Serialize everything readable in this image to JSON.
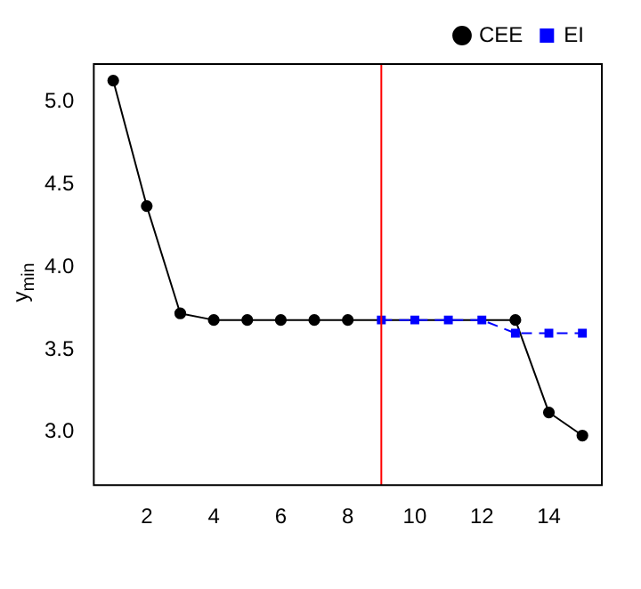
{
  "chart_data": {
    "type": "line",
    "ylabel": "y$_{min}$",
    "xlim": [
      0.42,
      15.58
    ],
    "xticks": [
      2,
      4,
      6,
      8,
      10,
      12,
      14
    ],
    "ylim": [
      2.68,
      5.23
    ],
    "yticks": [
      {
        "value": 3,
        "label": "3.0"
      },
      {
        "value": 3.5,
        "label": "3.5"
      },
      {
        "value": 4,
        "label": "4.0"
      },
      {
        "value": 4.5,
        "label": "4.5"
      },
      {
        "value": 5,
        "label": "5.0"
      }
    ],
    "series": [
      {
        "name": "CEE",
        "color": "#000000",
        "marker": "circle",
        "line_style": "solid",
        "x": [
          1,
          2,
          3,
          4,
          5,
          6,
          7,
          8,
          9,
          10,
          11,
          12,
          13,
          14,
          15
        ],
        "values": [
          5.13,
          4.37,
          3.72,
          3.68,
          3.68,
          3.68,
          3.68,
          3.68,
          null,
          null,
          null,
          null,
          3.68,
          3.12,
          2.98
        ]
      },
      {
        "name": "EI",
        "color": "#0000ff",
        "marker": "square",
        "line_style": "dashed",
        "x": [
          9,
          10,
          11,
          12,
          13,
          14,
          15
        ],
        "values": [
          3.68,
          3.68,
          3.68,
          3.68,
          3.6,
          3.6,
          3.6
        ]
      }
    ],
    "ref_lines": [
      {
        "axis": "x",
        "value": 9,
        "color": "#ff0000"
      }
    ],
    "legend": "top right",
    "grid": false
  }
}
